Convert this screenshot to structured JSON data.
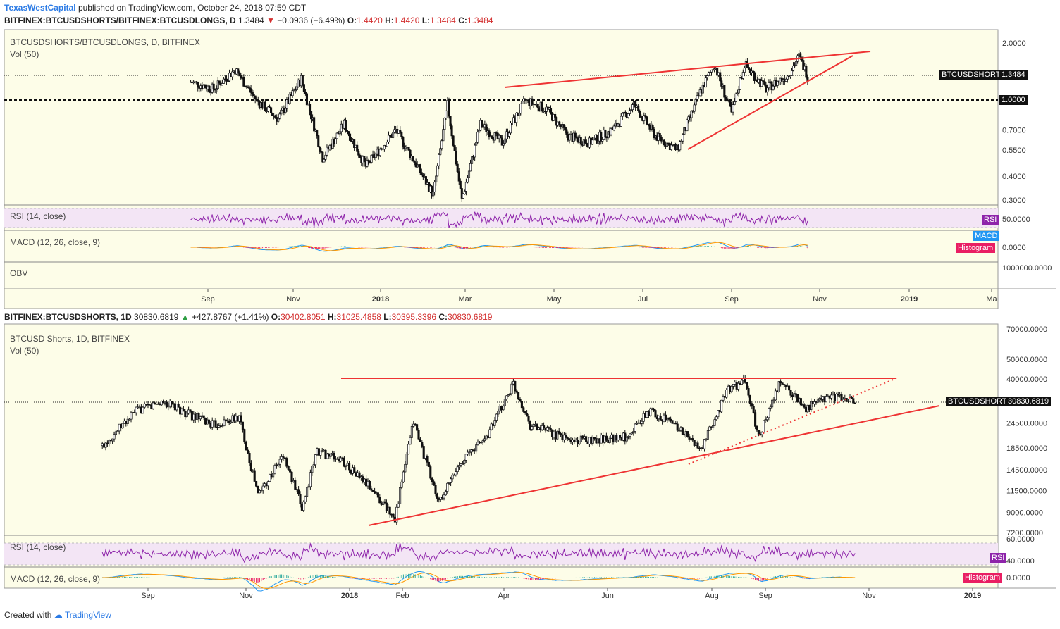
{
  "header": {
    "author": "TexasWestCapital",
    "published": "published on TradingView.com, October 24, 2018 07:59 CDT"
  },
  "top": {
    "symbol": "BITFINEX:BTCUSDSHORTS/BITFINEX:BTCUSDLONGS, D",
    "last": "1.3484",
    "change": "−0.0936 (−6.49%)",
    "o": "1.4420",
    "h": "1.4420",
    "l": "1.3484",
    "c": "1.3484",
    "title": "BTCUSDSHORTS/BTCUSDLONGS, D, BITFINEX",
    "vol": "Vol (50)",
    "rsi": "RSI (14, close)",
    "macd": "MACD (12, 26, close, 9)",
    "obv": "OBV",
    "price_tag_label": "BTCUSDSHORTS",
    "price_tag_value": "1.3484",
    "ref_tag_value": "1.0000",
    "rsi_tag": "RSI",
    "macd_tag": "MACD",
    "hist_tag": "Histogram"
  },
  "bottom": {
    "symbol": "BITFINEX:BTCUSDSHORTS, 1D",
    "last": "30830.6819",
    "change": "+427.8767 (+1.41%)",
    "o": "30402.8051",
    "h": "31025.4858",
    "l": "30395.3396",
    "c": "30830.6819",
    "title": "BTCUSD Shorts, 1D, BITFINEX",
    "vol": "Vol (50)",
    "rsi": "RSI (14, close)",
    "macd": "MACD (12, 26, close, 9)",
    "price_tag_label": "BTCUSDSHORTS",
    "price_tag_value": "30830.6819",
    "rsi_tag": "RSI",
    "hist_tag": "Histogram"
  },
  "footer": {
    "created": "Created with",
    "brand": "TradingView"
  },
  "colors": {
    "background": "#fdfde8",
    "trendline": "#ee3333",
    "rsi": "#8e24aa",
    "rsi_band": "#f3e5f5",
    "macd": "#2196f3",
    "signal": "#ff9800",
    "candle_up": "#ffffff",
    "candle_down": "#111111"
  },
  "chart_data": [
    {
      "type": "candlestick",
      "title": "BTCUSDSHORTS/BTCUSDLONGS, D, BITFINEX",
      "y_scale": "log",
      "y_ticks": [
        "2.0000",
        "1.0000",
        "0.7000",
        "0.5500",
        "0.4000",
        "0.3000"
      ],
      "x_ticks": [
        "Sep",
        "Nov",
        "2018",
        "Mar",
        "May",
        "Jul",
        "Sep",
        "Nov",
        "2019",
        "Ma"
      ],
      "last_value": 1.3484,
      "reference_line": 1.0,
      "approx_path": [
        [
          "2017-08-20",
          1.25
        ],
        [
          "2017-09-05",
          1.15
        ],
        [
          "2017-09-20",
          1.45
        ],
        [
          "2017-10-05",
          1.0
        ],
        [
          "2017-10-20",
          0.8
        ],
        [
          "2017-11-05",
          1.3
        ],
        [
          "2017-11-20",
          0.5
        ],
        [
          "2017-12-05",
          0.75
        ],
        [
          "2017-12-20",
          0.45
        ],
        [
          "2018-01-10",
          0.7
        ],
        [
          "2018-01-25",
          0.45
        ],
        [
          "2018-02-05",
          0.32
        ],
        [
          "2018-02-15",
          0.95
        ],
        [
          "2018-02-25",
          0.3
        ],
        [
          "2018-03-10",
          0.75
        ],
        [
          "2018-03-25",
          0.6
        ],
        [
          "2018-04-10",
          1.0
        ],
        [
          "2018-04-25",
          0.9
        ],
        [
          "2018-05-10",
          0.65
        ],
        [
          "2018-05-25",
          0.6
        ],
        [
          "2018-06-10",
          0.7
        ],
        [
          "2018-06-25",
          0.95
        ],
        [
          "2018-07-10",
          0.65
        ],
        [
          "2018-07-25",
          0.55
        ],
        [
          "2018-08-10",
          1.1
        ],
        [
          "2018-08-20",
          1.55
        ],
        [
          "2018-09-01",
          0.85
        ],
        [
          "2018-09-10",
          1.55
        ],
        [
          "2018-09-25",
          1.15
        ],
        [
          "2018-10-10",
          1.35
        ],
        [
          "2018-10-18",
          1.7
        ],
        [
          "2018-10-24",
          1.3484
        ]
      ]
    },
    {
      "type": "candlestick",
      "title": "BTCUSD Shorts, 1D, BITFINEX",
      "y_scale": "log",
      "y_ticks": [
        "70000.0000",
        "50000.0000",
        "40000.0000",
        "24500.0000",
        "18500.0000",
        "14500.0000",
        "11500.0000",
        "9000.0000",
        "7200.0000"
      ],
      "x_ticks": [
        "Sep",
        "Nov",
        "2018",
        "Feb",
        "Apr",
        "Jun",
        "Aug",
        "Sep",
        "Nov",
        "2019"
      ],
      "last_value": 30830.6819,
      "approx_path": [
        [
          "2017-08-05",
          19000
        ],
        [
          "2017-08-25",
          28000
        ],
        [
          "2017-09-10",
          31000
        ],
        [
          "2017-09-25",
          27000
        ],
        [
          "2017-10-10",
          24000
        ],
        [
          "2017-10-25",
          26000
        ],
        [
          "2017-11-05",
          11000
        ],
        [
          "2017-11-20",
          17000
        ],
        [
          "2017-12-01",
          9500
        ],
        [
          "2017-12-10",
          18000
        ],
        [
          "2017-12-25",
          16000
        ],
        [
          "2018-01-10",
          12000
        ],
        [
          "2018-01-25",
          8500
        ],
        [
          "2018-02-05",
          25000
        ],
        [
          "2018-02-20",
          10000
        ],
        [
          "2018-03-05",
          16000
        ],
        [
          "2018-03-20",
          21000
        ],
        [
          "2018-04-05",
          38000
        ],
        [
          "2018-04-15",
          24000
        ],
        [
          "2018-05-10",
          20000
        ],
        [
          "2018-06-10",
          21000
        ],
        [
          "2018-06-25",
          28000
        ],
        [
          "2018-07-10",
          24000
        ],
        [
          "2018-07-25",
          18000
        ],
        [
          "2018-08-10",
          36000
        ],
        [
          "2018-08-20",
          39000
        ],
        [
          "2018-08-28",
          21000
        ],
        [
          "2018-09-10",
          39000
        ],
        [
          "2018-09-25",
          29000
        ],
        [
          "2018-10-10",
          33000
        ],
        [
          "2018-10-24",
          30830.6819
        ]
      ]
    }
  ]
}
